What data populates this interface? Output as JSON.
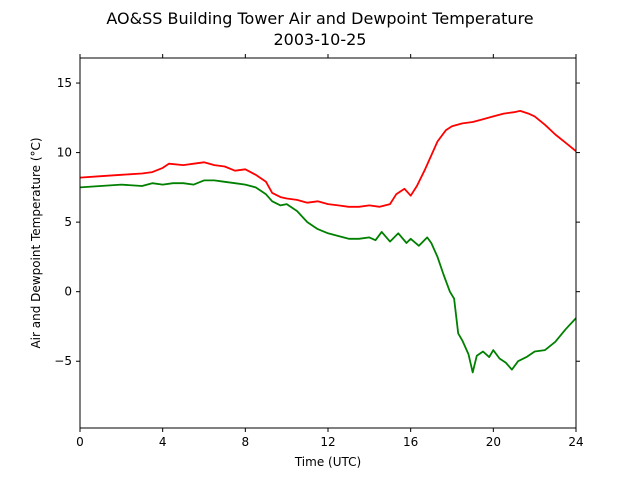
{
  "chart_data": {
    "type": "line",
    "title": "AO&SS Building Tower Air and Dewpoint Temperature",
    "subtitle": "2003-10-25",
    "xlabel": "Time (UTC)",
    "ylabel": "Air and Dewpoint Temperature (°C)",
    "xlim": [
      0,
      24
    ],
    "ylim": [
      -9.8,
      16.8
    ],
    "xticks": [
      0,
      4,
      8,
      12,
      16,
      20,
      24
    ],
    "yticks": [
      -5,
      0,
      5,
      10,
      15
    ],
    "grid": false,
    "series": [
      {
        "color": "#ff0000",
        "x": [
          0,
          1,
          2,
          3,
          3.5,
          4,
          4.3,
          5,
          5.5,
          6,
          6.5,
          7,
          7.5,
          8,
          8.5,
          9,
          9.3,
          9.7,
          10,
          10.5,
          11,
          11.5,
          12,
          12.5,
          13,
          13.5,
          14,
          14.5,
          15,
          15.3,
          15.7,
          16,
          16.3,
          16.7,
          17,
          17.3,
          17.7,
          18,
          18.5,
          19,
          19.5,
          20,
          20.5,
          21,
          21.3,
          21.7,
          22,
          22.5,
          23,
          23.5,
          24
        ],
        "y": [
          8.2,
          8.3,
          8.4,
          8.5,
          8.6,
          8.9,
          9.2,
          9.1,
          9.2,
          9.3,
          9.1,
          9.0,
          8.7,
          8.8,
          8.4,
          7.9,
          7.1,
          6.8,
          6.7,
          6.6,
          6.4,
          6.5,
          6.3,
          6.2,
          6.1,
          6.1,
          6.2,
          6.1,
          6.3,
          7.0,
          7.4,
          6.9,
          7.6,
          8.8,
          9.8,
          10.8,
          11.6,
          11.9,
          12.1,
          12.2,
          12.4,
          12.6,
          12.8,
          12.9,
          13.0,
          12.8,
          12.6,
          12.0,
          11.3,
          10.7,
          10.1
        ]
      },
      {
        "color": "#008000",
        "x": [
          0,
          1,
          2,
          3,
          3.5,
          4,
          4.5,
          5,
          5.5,
          6,
          6.5,
          7,
          7.5,
          8,
          8.5,
          9,
          9.3,
          9.7,
          10,
          10.5,
          11,
          11.5,
          12,
          12.5,
          13,
          13.5,
          14,
          14.3,
          14.6,
          15,
          15.4,
          15.8,
          16,
          16.4,
          16.8,
          17,
          17.3,
          17.6,
          17.9,
          18.1,
          18.3,
          18.5,
          18.8,
          19,
          19.2,
          19.5,
          19.8,
          20,
          20.3,
          20.6,
          20.9,
          21.2,
          21.6,
          22,
          22.5,
          23,
          23.5,
          24
        ],
        "y": [
          7.5,
          7.6,
          7.7,
          7.6,
          7.8,
          7.7,
          7.8,
          7.8,
          7.7,
          8.0,
          8.0,
          7.9,
          7.8,
          7.7,
          7.5,
          7.0,
          6.5,
          6.2,
          6.3,
          5.8,
          5.0,
          4.5,
          4.2,
          4.0,
          3.8,
          3.8,
          3.9,
          3.7,
          4.3,
          3.6,
          4.2,
          3.5,
          3.8,
          3.3,
          3.9,
          3.5,
          2.5,
          1.2,
          0.0,
          -0.5,
          -3.0,
          -3.5,
          -4.5,
          -5.8,
          -4.6,
          -4.3,
          -4.7,
          -4.2,
          -4.8,
          -5.1,
          -5.6,
          -5.0,
          -4.7,
          -4.3,
          -4.2,
          -3.6,
          -2.7,
          -1.9
        ]
      }
    ]
  }
}
